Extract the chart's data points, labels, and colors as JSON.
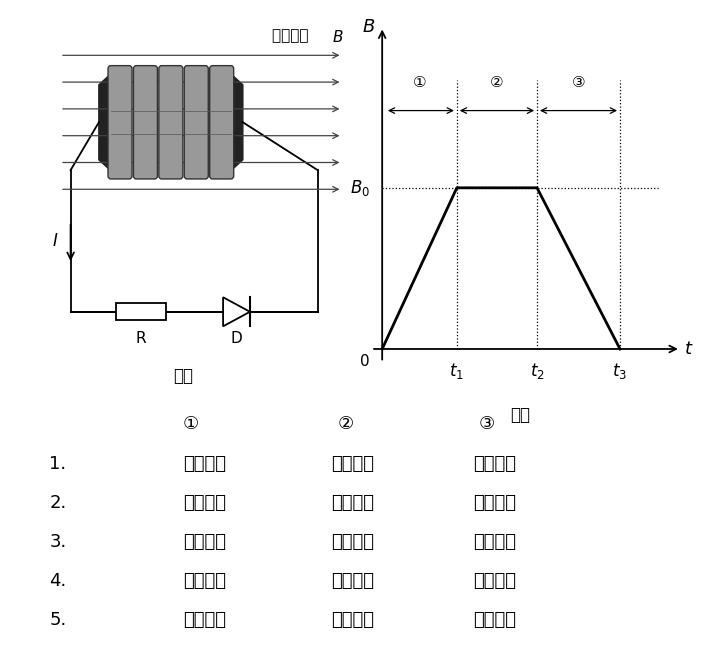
{
  "bg_color": "#ffffff",
  "fig_width": 7.06,
  "fig_height": 6.6,
  "dpi": 100,
  "fig1_label": "図１",
  "fig2_label": "図２",
  "fig1_title": "磁束密度 B",
  "label_I": "I",
  "label_R": "R",
  "label_D": "D",
  "label_B": "B",
  "label_B0": "B₀",
  "circle1": "①",
  "circle2": "②",
  "circle3": "③",
  "table_header": [
    "①",
    "②",
    "③"
  ],
  "table_rows": [
    [
      "1.",
      "電流あり",
      "電流なし",
      "電流なし"
    ],
    [
      "2.",
      "電流あり",
      "電流なし",
      "電流あり"
    ],
    [
      "3.",
      "電流あり",
      "電流あり",
      "電流あり"
    ],
    [
      "4.",
      "電流なし",
      "電流あり",
      "電流なし"
    ],
    [
      "5.",
      "電流なし",
      "電流なし",
      "電流あり"
    ]
  ],
  "coil_color": "#999999",
  "coil_edge_color": "#333333",
  "arrow_color": "#444444"
}
